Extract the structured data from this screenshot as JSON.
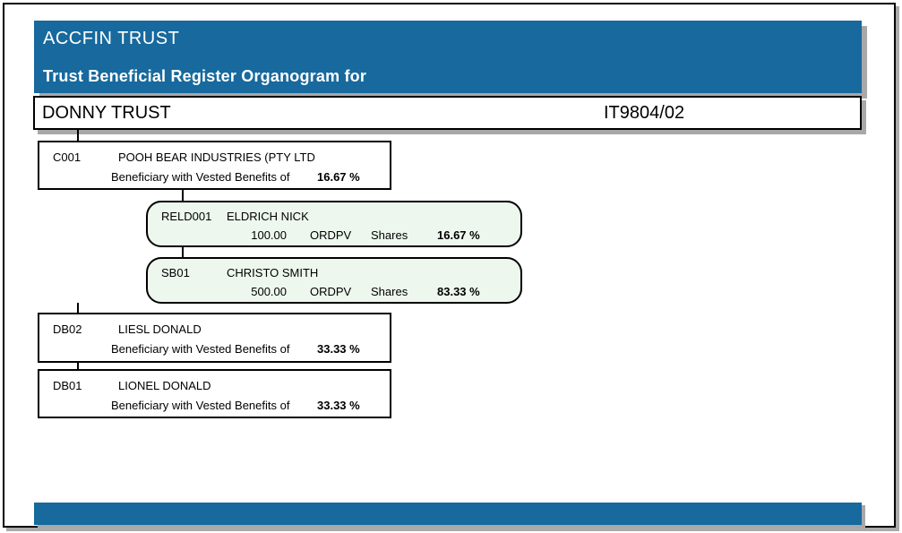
{
  "page": {
    "header": {
      "app_title": "ACCFIN TRUST",
      "report_title": "Trust Beneficial Register Organogram for"
    },
    "trust_bar": {
      "name": "DONNY TRUST",
      "number": "IT9804/02"
    },
    "colors": {
      "header_blue": "#17699E",
      "node_green": "#EDF7ED",
      "border_black": "#000000",
      "shadow_gray": "#A8A8A8"
    },
    "nodes": [
      {
        "code": "C001",
        "name": "POOH BEAR INDUSTRIES (PTY LTD",
        "detail_label": "Beneficiary with Vested Benefits of",
        "percent": "16.67 %",
        "style": "square"
      },
      {
        "code": "RELD001",
        "name": "ELDRICH NICK",
        "quantity": "100.00",
        "share_class": "ORDPV",
        "unit_label": "Shares",
        "percent": "16.67 %",
        "style": "rounded-green"
      },
      {
        "code": "SB01",
        "name": "CHRISTO SMITH",
        "quantity": "500.00",
        "share_class": "ORDPV",
        "unit_label": "Shares",
        "percent": "83.33 %",
        "style": "rounded-green"
      },
      {
        "code": "DB02",
        "name": "LIESL DONALD",
        "detail_label": "Beneficiary with Vested Benefits of",
        "percent": "33.33 %",
        "style": "square"
      },
      {
        "code": "DB01",
        "name": "LIONEL DONALD",
        "detail_label": "Beneficiary with Vested Benefits of",
        "percent": "33.33 %",
        "style": "square"
      }
    ]
  }
}
